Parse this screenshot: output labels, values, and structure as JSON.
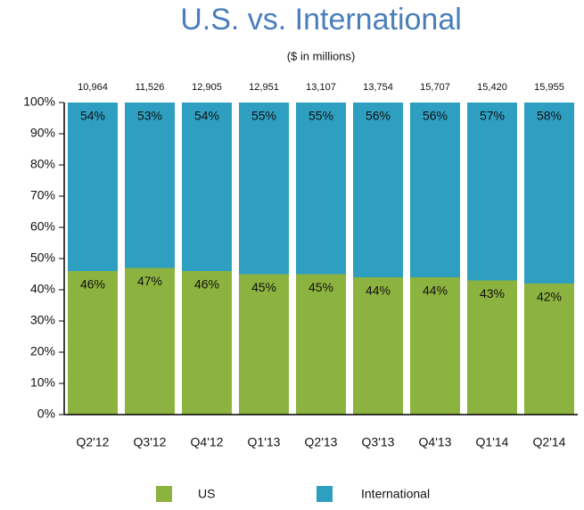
{
  "chart_data": {
    "type": "stacked_bar_100",
    "title": "U.S. vs. International",
    "subtitle": "($ in millions)",
    "categories": [
      "Q2'12",
      "Q3'12",
      "Q4'12",
      "Q1'13",
      "Q2'13",
      "Q3'13",
      "Q4'13",
      "Q1'14",
      "Q2'14"
    ],
    "series": [
      {
        "name": "US",
        "color": "#8cb33f",
        "values": [
          46,
          47,
          46,
          45,
          45,
          44,
          44,
          43,
          42
        ],
        "value_labels": [
          "46%",
          "47%",
          "46%",
          "45%",
          "45%",
          "44%",
          "44%",
          "43%",
          "42%"
        ]
      },
      {
        "name": "International",
        "color": "#2f9fc1",
        "values": [
          54,
          53,
          54,
          55,
          55,
          56,
          56,
          57,
          58
        ],
        "value_labels": [
          "54%",
          "53%",
          "54%",
          "55%",
          "55%",
          "56%",
          "56%",
          "57%",
          "58%"
        ]
      }
    ],
    "totals": {
      "values": [
        10964,
        11526,
        12905,
        12951,
        13107,
        13754,
        15707,
        15420,
        15955
      ],
      "value_labels": [
        "10,964",
        "11,526",
        "12,905",
        "12,951",
        "13,107",
        "13,754",
        "15,707",
        "15,420",
        "15,955"
      ]
    },
    "ylim": [
      0,
      100
    ],
    "yticks": [
      {
        "value": 0,
        "label": "0%"
      },
      {
        "value": 10,
        "label": "10%"
      },
      {
        "value": 20,
        "label": "20%"
      },
      {
        "value": 30,
        "label": "30%"
      },
      {
        "value": 40,
        "label": "40%"
      },
      {
        "value": 50,
        "label": "50%"
      },
      {
        "value": 60,
        "label": "60%"
      },
      {
        "value": 70,
        "label": "70%"
      },
      {
        "value": 80,
        "label": "80%"
      },
      {
        "value": 90,
        "label": "90%"
      },
      {
        "value": 100,
        "label": "100%"
      }
    ],
    "legend": "bottom"
  }
}
